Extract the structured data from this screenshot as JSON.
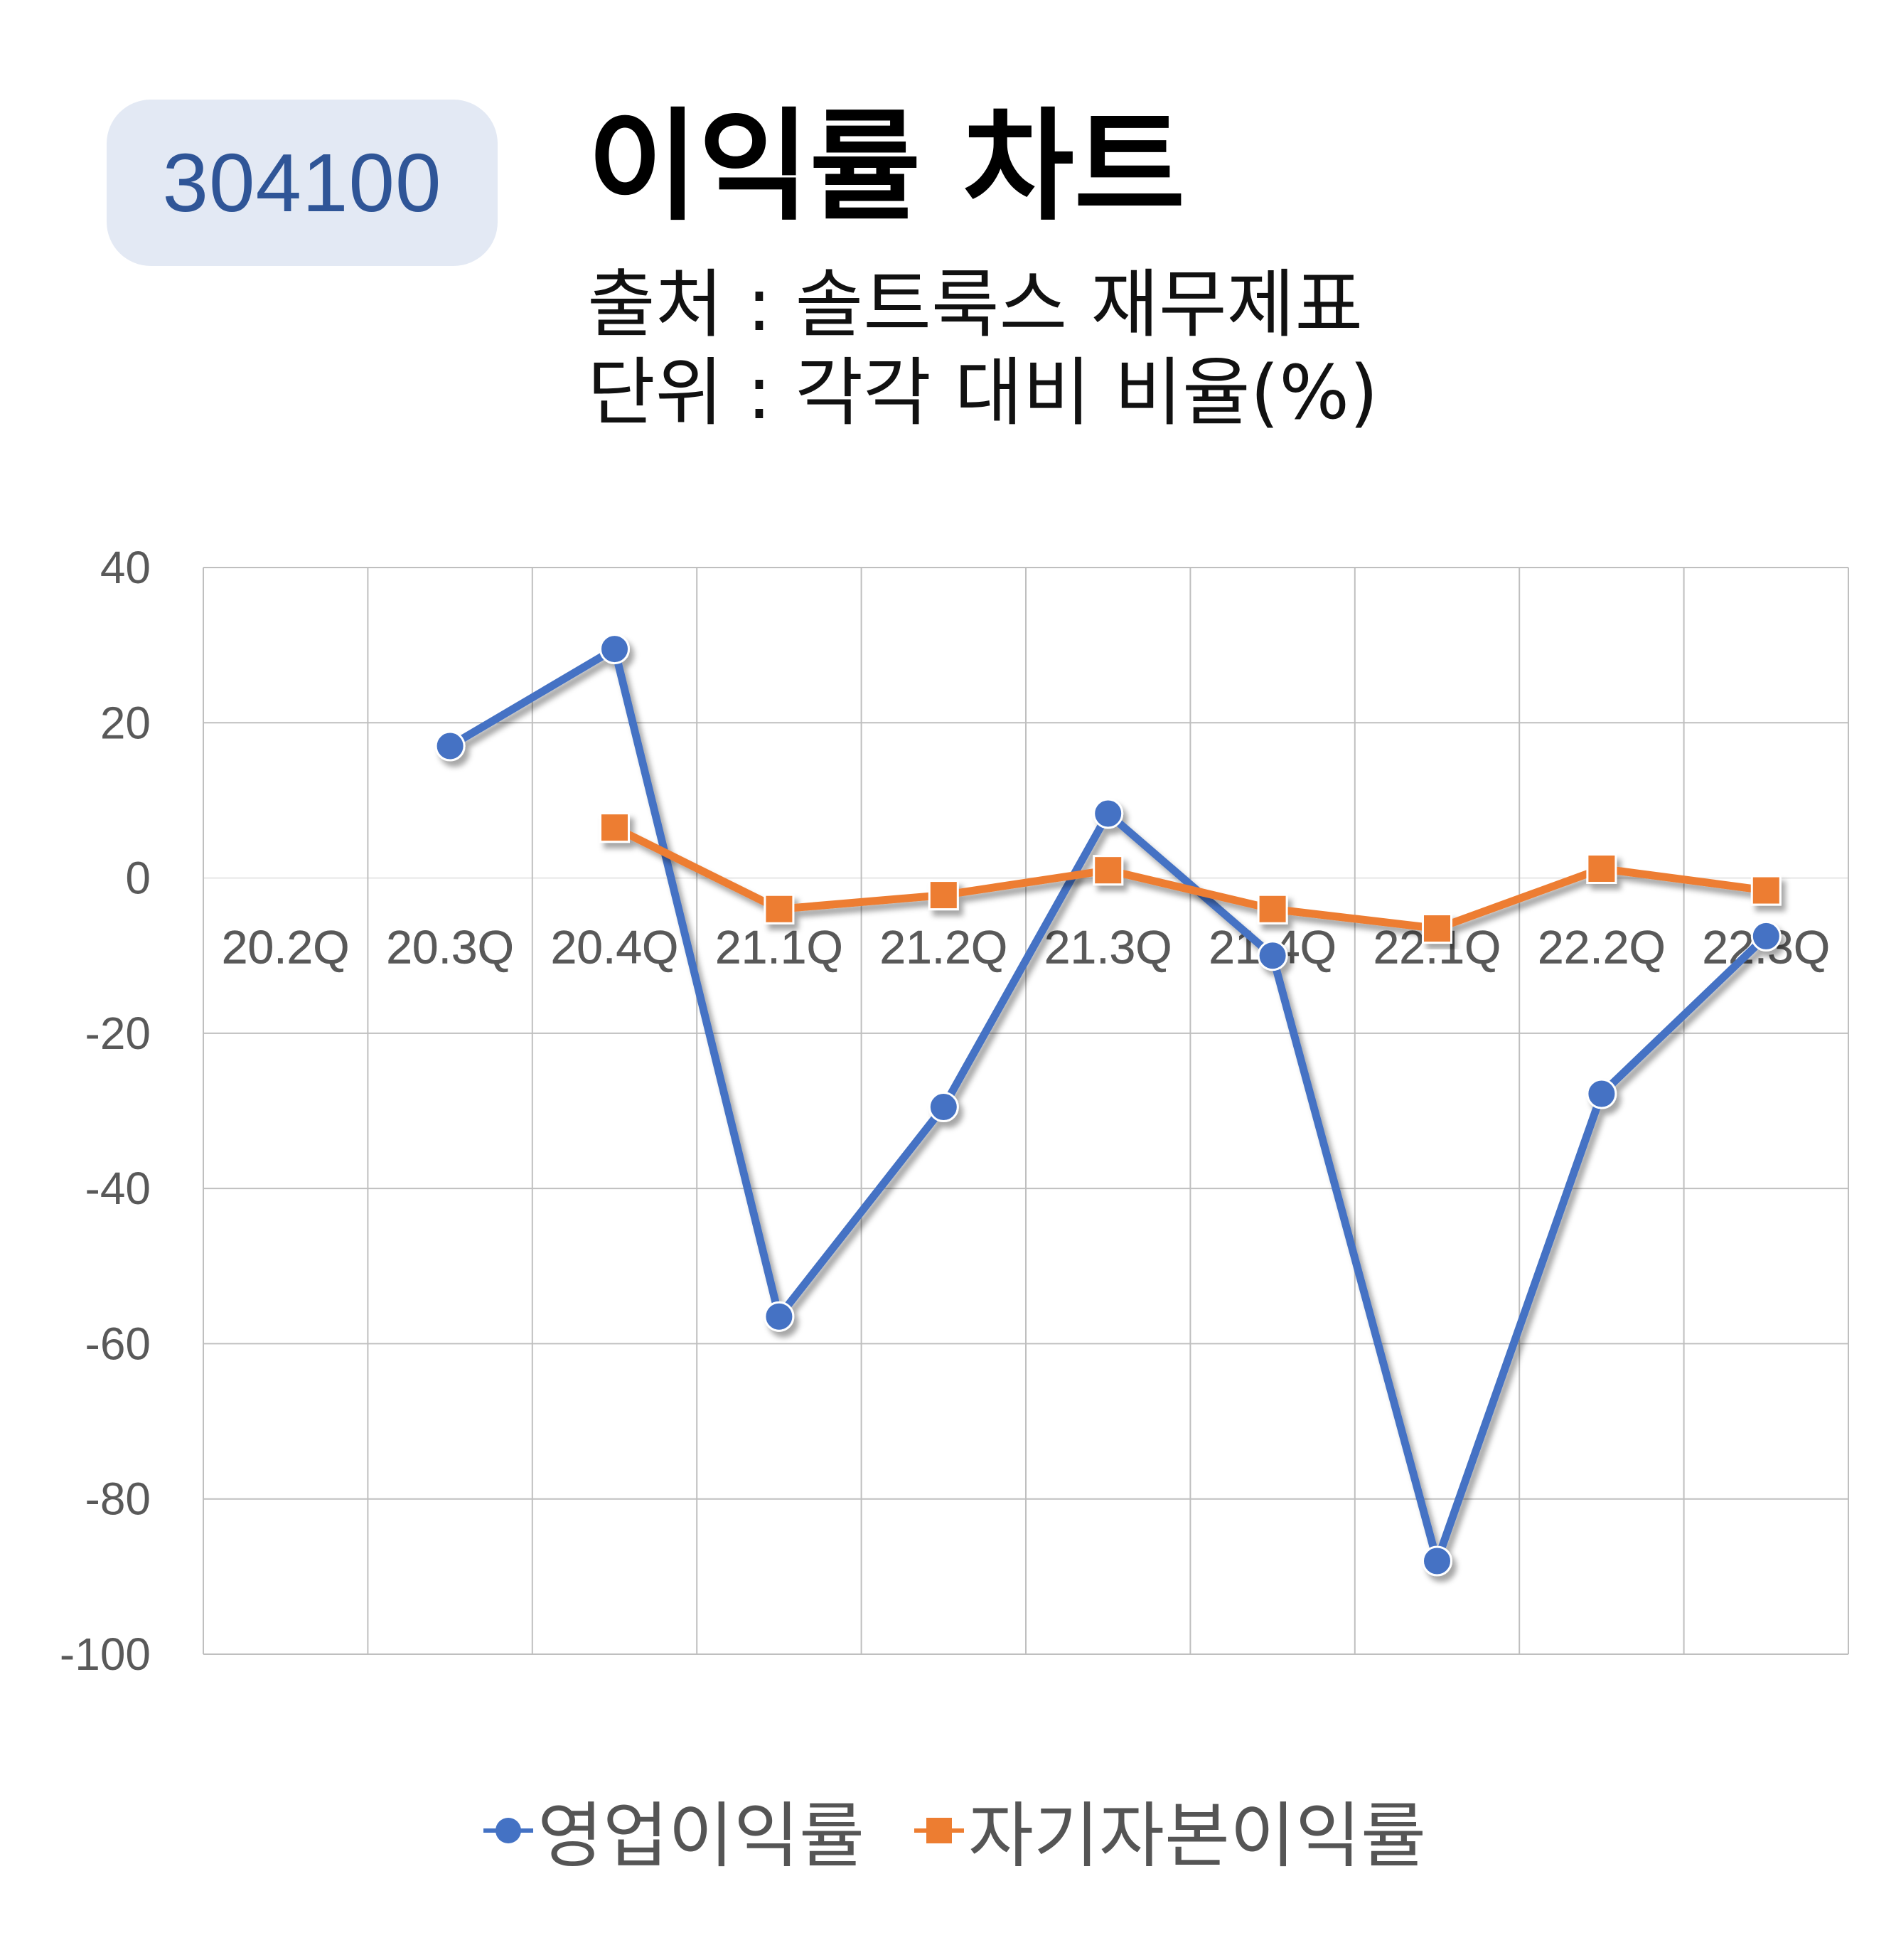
{
  "badge": {
    "ticker": "304100"
  },
  "header": {
    "title": "이익률 차트",
    "source": "출처 : 솔트룩스 재무제표",
    "unit": "단위 : 각각 대비 비율(%)"
  },
  "colors": {
    "operating": "#4472c4",
    "roe": "#ed7d31",
    "grid": "#bfbfbf",
    "badge_bg": "#e3e9f4",
    "badge_text": "#2f5597"
  },
  "chart_data": {
    "type": "line",
    "categories": [
      "20.2Q",
      "20.3Q",
      "20.4Q",
      "21.1Q",
      "21.2Q",
      "21.3Q",
      "21.4Q",
      "22.1Q",
      "22.2Q",
      "22.3Q"
    ],
    "ylim": [
      -100,
      40
    ],
    "yticks": [
      40,
      20,
      0,
      -20,
      -40,
      -60,
      -80,
      -100
    ],
    "grid": true,
    "legend_position": "bottom",
    "series": [
      {
        "name": "영업이익률",
        "marker": "circle",
        "values": [
          null,
          17,
          29.5,
          -56.5,
          -29.5,
          8.3,
          -10,
          -88,
          -27.8,
          -7.5
        ]
      },
      {
        "name": "자기자본이익률",
        "marker": "square",
        "values": [
          null,
          null,
          6.5,
          -4,
          -2.2,
          1,
          -4,
          -6.5,
          1.2,
          -1.6
        ]
      }
    ]
  }
}
